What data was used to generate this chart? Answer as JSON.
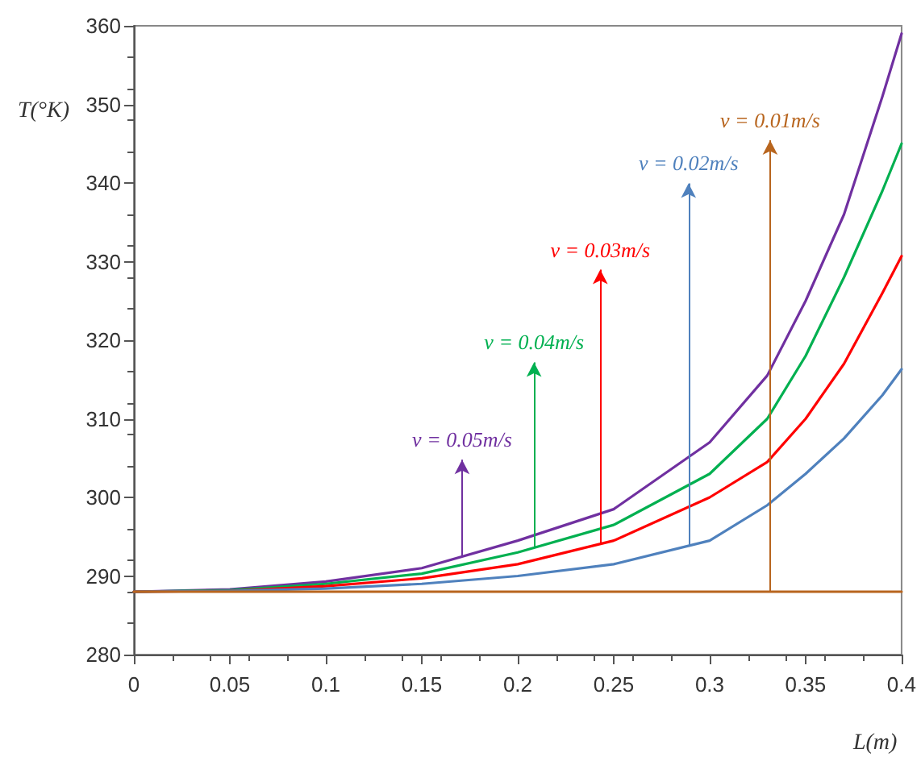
{
  "chart_data": {
    "type": "line",
    "xlabel": "L(m)",
    "ylabel": "T(°K)",
    "xlim": [
      0,
      0.4
    ],
    "xticks": [
      0,
      0.05,
      0.1,
      0.15,
      0.2,
      0.25,
      0.3,
      0.35,
      0.4
    ],
    "ylim": [
      280,
      360
    ],
    "yticks": [
      280,
      290,
      300,
      310,
      320,
      330,
      340,
      350,
      360
    ],
    "grid": false,
    "marker": "none",
    "line_style": "solid",
    "series": [
      {
        "color": "#7030a0",
        "x": [
          0,
          0.05,
          0.1,
          0.15,
          0.2,
          0.25,
          0.3,
          0.33,
          0.35,
          0.37,
          0.39,
          0.4
        ],
        "values": [
          288,
          288.3,
          289.3,
          291,
          294.5,
          298.5,
          307,
          315.5,
          325,
          336,
          351,
          359
        ]
      },
      {
        "color": "#00b050",
        "x": [
          0,
          0.05,
          0.1,
          0.15,
          0.2,
          0.25,
          0.3,
          0.33,
          0.35,
          0.37,
          0.39,
          0.4
        ],
        "values": [
          288,
          288.2,
          289,
          290.3,
          293,
          296.5,
          303,
          310,
          318,
          328,
          339,
          345
        ]
      },
      {
        "color": "#ff0000",
        "x": [
          0,
          0.05,
          0.1,
          0.15,
          0.2,
          0.25,
          0.3,
          0.33,
          0.35,
          0.37,
          0.39,
          0.4
        ],
        "values": [
          288,
          288.1,
          288.7,
          289.7,
          291.5,
          294.5,
          300,
          304.5,
          310,
          317,
          326,
          330.7
        ]
      },
      {
        "color": "#4f81bd",
        "x": [
          0,
          0.05,
          0.1,
          0.15,
          0.2,
          0.25,
          0.3,
          0.33,
          0.35,
          0.37,
          0.39,
          0.4
        ],
        "values": [
          288,
          288.1,
          288.4,
          289,
          290,
          291.5,
          294.5,
          299,
          303,
          307.5,
          313,
          316.3
        ]
      },
      {
        "color": "#b8651e",
        "x": [
          0,
          0.4
        ],
        "values": [
          288,
          288
        ]
      }
    ],
    "annotations": [
      {
        "text": "v = 0.05m/s",
        "x": 0.171,
        "y": 292.5
      },
      {
        "text": "v = 0.04m/s",
        "x": 0.2085,
        "y": 293.6
      },
      {
        "text": "v = 0.03m/s",
        "x": 0.243,
        "y": 294.1
      },
      {
        "text": "v = 0.02m/s",
        "x": 0.289,
        "y": 293.8
      },
      {
        "text": "v = 0.01m/s",
        "x": 0.3315,
        "y": 288
      }
    ]
  }
}
